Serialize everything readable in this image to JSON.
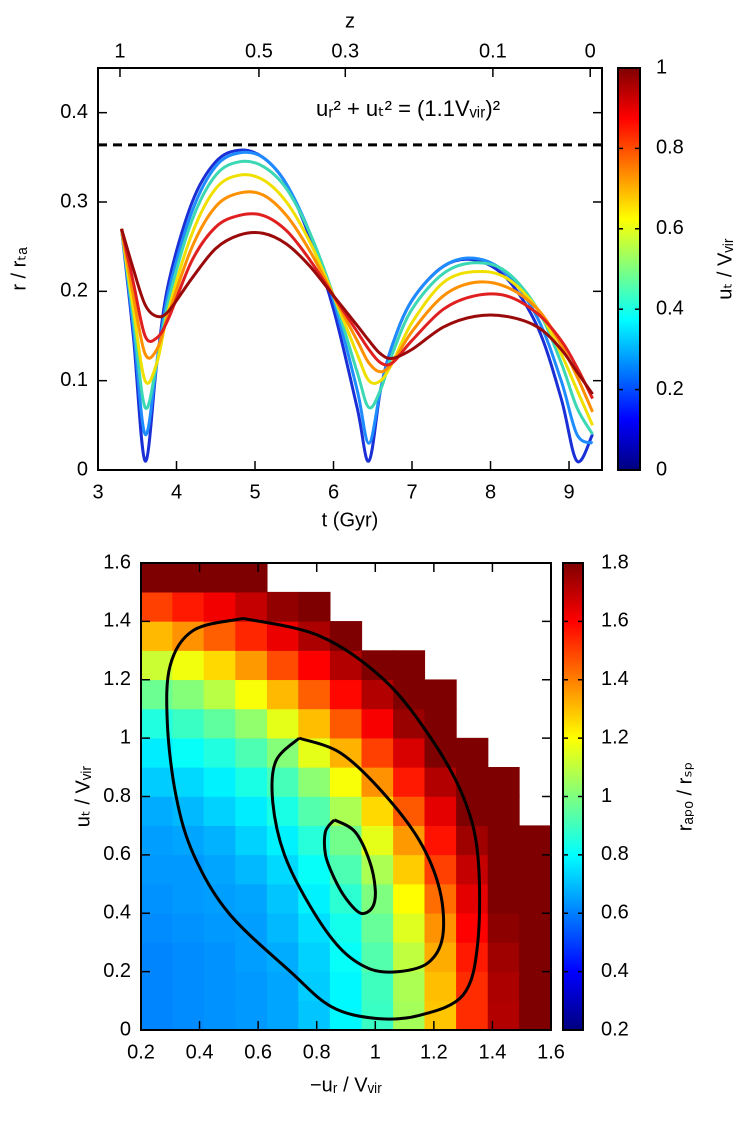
{
  "chart_data": [
    {
      "type": "line",
      "x2label": "z",
      "x2ticks": [
        {
          "value": 3.28,
          "label": "1"
        },
        {
          "value": 5.05,
          "label": "0.5"
        },
        {
          "value": 6.15,
          "label": "0.3"
        },
        {
          "value": 8.03,
          "label": "0.1"
        },
        {
          "value": 9.27,
          "label": "0"
        }
      ],
      "xlabel": "t (Gyr)",
      "ylabel": "r / rₜₐ",
      "xlim": [
        3,
        9.42
      ],
      "ylim": [
        0,
        0.45
      ],
      "xticks": [
        3,
        4,
        5,
        6,
        7,
        8,
        9
      ],
      "yticks": [
        0,
        0.1,
        0.2,
        0.3,
        0.4
      ],
      "x": [
        3.3,
        3.45,
        3.6,
        3.75,
        3.9,
        4.2,
        4.5,
        4.8,
        5.1,
        5.4,
        5.7,
        6.0,
        6.3,
        6.45,
        6.6,
        6.75,
        7.0,
        7.4,
        7.8,
        8.2,
        8.6,
        8.9,
        9.1,
        9.3
      ],
      "series": [
        {
          "color": "#1a2fd6",
          "values": [
            0.27,
            0.15,
            0.01,
            0.12,
            0.21,
            0.3,
            0.345,
            0.358,
            0.35,
            0.32,
            0.26,
            0.18,
            0.07,
            0.01,
            0.09,
            0.14,
            0.19,
            0.228,
            0.235,
            0.215,
            0.16,
            0.08,
            0.01,
            0.04
          ]
        },
        {
          "color": "#1e8cff",
          "values": [
            0.27,
            0.16,
            0.04,
            0.12,
            0.2,
            0.29,
            0.34,
            0.355,
            0.35,
            0.32,
            0.265,
            0.19,
            0.09,
            0.03,
            0.09,
            0.14,
            0.19,
            0.228,
            0.237,
            0.22,
            0.17,
            0.1,
            0.04,
            0.03
          ]
        },
        {
          "color": "#3cd8b4",
          "values": [
            0.27,
            0.17,
            0.07,
            0.12,
            0.19,
            0.28,
            0.33,
            0.345,
            0.34,
            0.315,
            0.265,
            0.195,
            0.11,
            0.07,
            0.09,
            0.13,
            0.18,
            0.22,
            0.232,
            0.222,
            0.18,
            0.12,
            0.07,
            0.04
          ]
        },
        {
          "color": "#f0e000",
          "values": [
            0.27,
            0.18,
            0.1,
            0.12,
            0.18,
            0.265,
            0.315,
            0.33,
            0.325,
            0.3,
            0.255,
            0.195,
            0.13,
            0.1,
            0.1,
            0.12,
            0.165,
            0.21,
            0.222,
            0.215,
            0.18,
            0.13,
            0.09,
            0.05
          ]
        },
        {
          "color": "#ff9000",
          "values": [
            0.27,
            0.195,
            0.13,
            0.135,
            0.175,
            0.25,
            0.295,
            0.31,
            0.308,
            0.285,
            0.245,
            0.195,
            0.145,
            0.12,
            0.11,
            0.12,
            0.155,
            0.195,
            0.21,
            0.205,
            0.18,
            0.14,
            0.105,
            0.065
          ]
        },
        {
          "color": "#e02020",
          "values": [
            0.27,
            0.21,
            0.15,
            0.148,
            0.17,
            0.235,
            0.272,
            0.285,
            0.285,
            0.268,
            0.235,
            0.195,
            0.155,
            0.135,
            0.12,
            0.12,
            0.145,
            0.18,
            0.195,
            0.195,
            0.175,
            0.145,
            0.115,
            0.08
          ]
        },
        {
          "color": "#9b0a0a",
          "values": [
            0.27,
            0.225,
            0.185,
            0.172,
            0.178,
            0.215,
            0.248,
            0.263,
            0.265,
            0.253,
            0.228,
            0.195,
            0.162,
            0.145,
            0.13,
            0.125,
            0.135,
            0.16,
            0.172,
            0.172,
            0.16,
            0.135,
            0.11,
            0.085
          ]
        }
      ],
      "hline": 0.364,
      "annotation": "uᵣ² + uₜ² = (1.1Vᵥᵢᵣ)²",
      "colorbar": {
        "label": "uₜ / Vᵥᵢᵣ",
        "lim": [
          0,
          1
        ],
        "ticks": [
          0,
          0.2,
          0.4,
          0.6,
          0.8,
          1
        ]
      },
      "colormap": [
        "#00007f",
        "#0000ff",
        "#007fff",
        "#00ffff",
        "#7fff7f",
        "#ffff00",
        "#ff7f00",
        "#ff0000",
        "#7f0000"
      ]
    },
    {
      "type": "heatmap",
      "xlabel": "−uᵣ / Vᵥᵢᵣ",
      "ylabel": "uₜ / Vᵥᵢᵣ",
      "xlim": [
        0.2,
        1.6
      ],
      "ylim": [
        0,
        1.6
      ],
      "xticks": [
        0.2,
        0.4,
        0.6,
        0.8,
        1,
        1.2,
        1.4,
        1.6
      ],
      "yticks": [
        0,
        0.2,
        0.4,
        0.6,
        0.8,
        1,
        1.2,
        1.4,
        1.6
      ],
      "xbins": [
        0.2,
        0.308,
        0.415,
        0.523,
        0.631,
        0.738,
        0.846,
        0.954,
        1.062,
        1.169,
        1.277,
        1.385,
        1.492,
        1.6
      ],
      "ybins": [
        0,
        0.1,
        0.2,
        0.3,
        0.4,
        0.5,
        0.6,
        0.7,
        0.8,
        0.9,
        1.0,
        1.1,
        1.2,
        1.3,
        1.4,
        1.5,
        1.6
      ],
      "z": [
        [
          0.61,
          0.62,
          0.63,
          0.64,
          0.66,
          0.71,
          0.79,
          0.89,
          1.06,
          1.29,
          1.53,
          1.72,
          1.8
        ],
        [
          0.61,
          0.62,
          0.63,
          0.64,
          0.66,
          0.72,
          0.79,
          0.9,
          1.07,
          1.3,
          1.53,
          1.73,
          1.8
        ],
        [
          0.61,
          0.62,
          0.63,
          0.65,
          0.67,
          0.73,
          0.81,
          0.93,
          1.1,
          1.33,
          1.56,
          1.75,
          1.8
        ],
        [
          0.62,
          0.63,
          0.64,
          0.65,
          0.69,
          0.75,
          0.83,
          0.96,
          1.15,
          1.37,
          1.6,
          1.78,
          1.8
        ],
        [
          0.63,
          0.64,
          0.65,
          0.66,
          0.71,
          0.78,
          0.87,
          1.0,
          1.2,
          1.43,
          1.64,
          1.8,
          1.8
        ],
        [
          0.64,
          0.64,
          0.66,
          0.69,
          0.74,
          0.81,
          0.92,
          1.07,
          1.28,
          1.5,
          1.69,
          1.8,
          1.8
        ],
        [
          0.65,
          0.66,
          0.68,
          0.73,
          0.78,
          0.86,
          0.98,
          1.16,
          1.36,
          1.57,
          1.75,
          1.8,
          1.8
        ],
        [
          0.67,
          0.69,
          0.73,
          0.77,
          0.84,
          0.93,
          1.07,
          1.26,
          1.46,
          1.64,
          1.8,
          1.8,
          null
        ],
        [
          0.72,
          0.74,
          0.78,
          0.84,
          0.91,
          1.02,
          1.19,
          1.37,
          1.56,
          1.72,
          1.8,
          1.8,
          null
        ],
        [
          0.77,
          0.81,
          0.85,
          0.92,
          1.01,
          1.16,
          1.32,
          1.5,
          1.66,
          1.8,
          1.8,
          null,
          null
        ],
        [
          0.85,
          0.89,
          0.95,
          1.03,
          1.16,
          1.3,
          1.46,
          1.61,
          1.76,
          1.8,
          null,
          null,
          null
        ],
        [
          0.97,
          1.01,
          1.09,
          1.19,
          1.31,
          1.45,
          1.59,
          1.72,
          1.8,
          1.8,
          null,
          null,
          null
        ],
        [
          1.12,
          1.18,
          1.26,
          1.36,
          1.48,
          1.6,
          1.72,
          1.8,
          1.8,
          null,
          null,
          null,
          null
        ],
        [
          1.31,
          1.37,
          1.45,
          1.54,
          1.63,
          1.73,
          1.8,
          null,
          null,
          null,
          null,
          null,
          null
        ],
        [
          1.5,
          1.56,
          1.62,
          1.69,
          1.77,
          1.8,
          null,
          null,
          null,
          null,
          null,
          null,
          null
        ],
        [
          1.8,
          1.8,
          1.8,
          1.8,
          null,
          null,
          null,
          null,
          null,
          null,
          null,
          null,
          null
        ]
      ],
      "contours": [
        {
          "x": [
            0.55,
            0.81,
            1.03,
            1.19,
            1.3,
            1.35,
            1.35,
            1.3,
            1.15,
            1.0,
            0.85,
            0.71,
            0.5,
            0.38,
            0.32,
            0.29,
            0.3,
            0.38,
            0.55
          ],
          "y": [
            1.41,
            1.35,
            1.2,
            1.0,
            0.8,
            0.6,
            0.3,
            0.12,
            0.05,
            0.04,
            0.08,
            0.2,
            0.4,
            0.6,
            0.8,
            1.05,
            1.25,
            1.37,
            1.41
          ]
        },
        {
          "x": [
            0.74,
            0.88,
            1.02,
            1.15,
            1.22,
            1.23,
            1.18,
            1.08,
            0.98,
            0.88,
            0.78,
            0.69,
            0.65,
            0.66,
            0.74
          ],
          "y": [
            1.0,
            0.95,
            0.82,
            0.65,
            0.48,
            0.32,
            0.23,
            0.2,
            0.21,
            0.28,
            0.42,
            0.6,
            0.78,
            0.92,
            1.0
          ]
        },
        {
          "x": [
            0.86,
            0.93,
            0.98,
            1.0,
            0.99,
            0.95,
            0.9,
            0.86,
            0.83,
            0.83,
            0.86
          ],
          "y": [
            0.72,
            0.68,
            0.58,
            0.48,
            0.42,
            0.4,
            0.45,
            0.52,
            0.6,
            0.68,
            0.72
          ]
        }
      ],
      "colorbar": {
        "label": "rₐₚₒ / rₛₚ",
        "lim": [
          0.2,
          1.8
        ],
        "ticks": [
          0.2,
          0.4,
          0.6,
          0.8,
          1,
          1.2,
          1.4,
          1.6,
          1.8
        ]
      },
      "colormap": [
        "#00007f",
        "#0000ff",
        "#007fff",
        "#00ffff",
        "#7fff7f",
        "#ffff00",
        "#ff7f00",
        "#ff0000",
        "#7f0000"
      ]
    }
  ]
}
